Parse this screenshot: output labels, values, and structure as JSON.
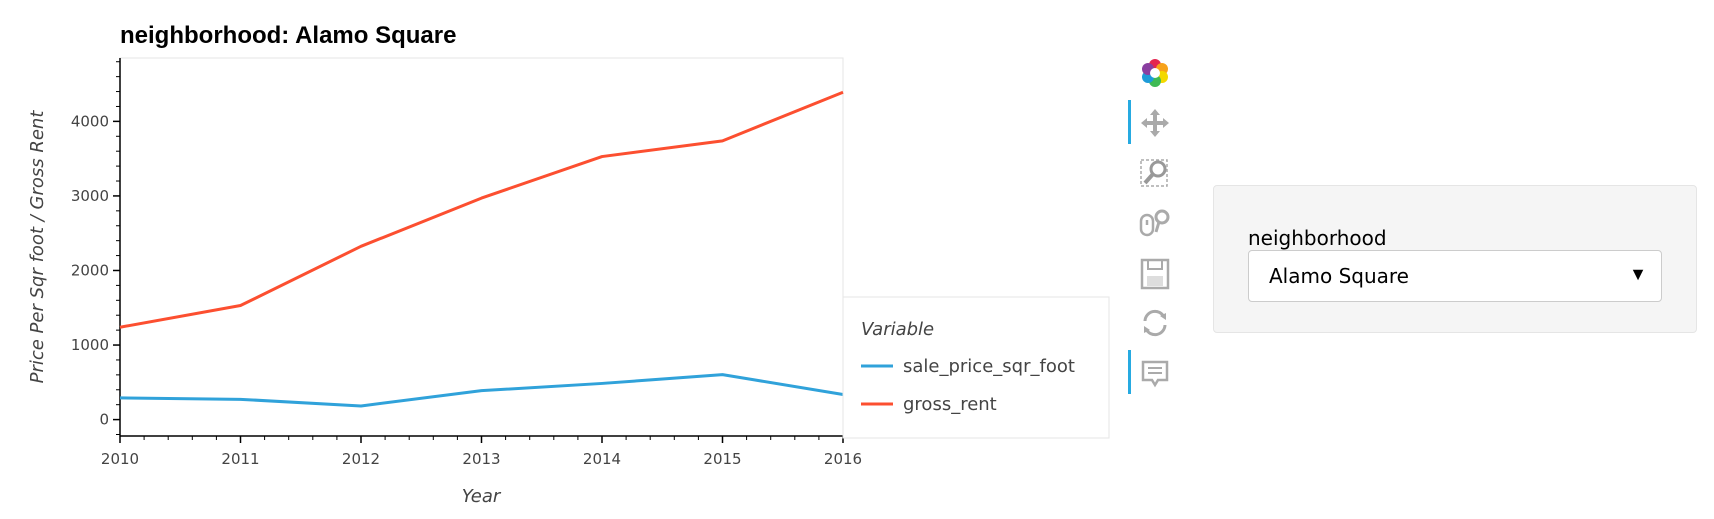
{
  "chart_data": {
    "type": "line",
    "title": "neighborhood: Alamo Square",
    "xlabel": "Year",
    "ylabel": "Price Per Sqr foot / Gross Rent",
    "x": [
      2010,
      2011,
      2012,
      2013,
      2014,
      2015,
      2016
    ],
    "xlim": [
      2010,
      2016
    ],
    "ylim": [
      -220,
      4850
    ],
    "xticks": [
      "2010",
      "2011",
      "2012",
      "2013",
      "2014",
      "2015",
      "2016"
    ],
    "yticks": [
      "0",
      "1000",
      "2000",
      "3000",
      "4000"
    ],
    "legend_title": "Variable",
    "legend_position": "right",
    "grid": false,
    "series": [
      {
        "name": "sale_price_sqr_foot",
        "color": "#30a2da",
        "values": [
          291,
          272,
          183,
          388,
          485,
          603,
          337
        ]
      },
      {
        "name": "gross_rent",
        "color": "#fc4f30",
        "values": [
          1239,
          1530,
          2324,
          2971,
          3528,
          3739,
          4390
        ]
      }
    ]
  },
  "toolbar": {
    "tools": [
      {
        "name": "bokeh-logo-icon",
        "active": false
      },
      {
        "name": "pan-icon",
        "active": true
      },
      {
        "name": "box-zoom-icon",
        "active": false
      },
      {
        "name": "wheel-zoom-icon",
        "active": false
      },
      {
        "name": "save-icon",
        "active": false
      },
      {
        "name": "reset-icon",
        "active": false
      },
      {
        "name": "hover-icon",
        "active": true
      }
    ]
  },
  "widget": {
    "label": "neighborhood",
    "selected": "Alamo Square"
  }
}
